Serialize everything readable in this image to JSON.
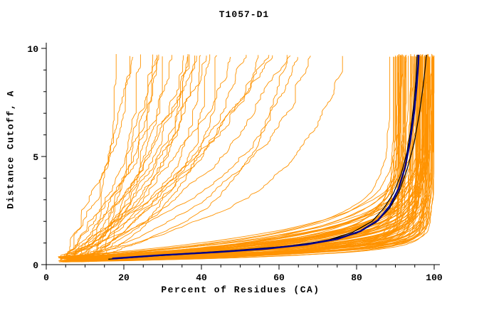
{
  "chart_data": {
    "type": "line",
    "title": "T1057-D1",
    "xlabel": "Percent of Residues (CA)",
    "ylabel": "Distance Cutoff, A",
    "xlim": [
      0,
      100
    ],
    "ylim": [
      0,
      10
    ],
    "x_ticks": [
      0,
      20,
      40,
      60,
      80,
      100
    ],
    "y_ticks": [
      0,
      5,
      10
    ],
    "x_minor_step": 5,
    "y_minor_step": 1,
    "grid": false,
    "legend": "none",
    "axis_color": "#000000",
    "description": "GDT-style plot: cumulative percent of CA residues under each distance cutoff for many predicted models",
    "series_groups": [
      {
        "name": "prediction-models",
        "color": "#ff9300",
        "line_width": 0.9,
        "render": "bundle",
        "seed": 1337,
        "dense": {
          "count": 92,
          "x_start_range": [
            3,
            9
          ],
          "x_end_range": [
            87,
            99.5
          ],
          "tau_range": [
            0.25,
            1.4
          ],
          "wiggle": 0.35
        },
        "stragglers": {
          "count": 30,
          "x_start_range": [
            3,
            13
          ],
          "x_end_range": [
            16,
            88
          ],
          "tau_range": [
            1.8,
            9.5
          ],
          "wiggle": 0.9
        }
      },
      {
        "name": "reference-curve-1",
        "color": "#000000",
        "line_width": 1.2,
        "render": "points",
        "points": [
          [
            16,
            0.25
          ],
          [
            28,
            0.4
          ],
          [
            42,
            0.55
          ],
          [
            55,
            0.72
          ],
          [
            65,
            0.9
          ],
          [
            73,
            1.15
          ],
          [
            79,
            1.5
          ],
          [
            84,
            2.0
          ],
          [
            87,
            2.6
          ],
          [
            89.5,
            3.3
          ],
          [
            91.5,
            4.2
          ],
          [
            93,
            5.2
          ],
          [
            94,
            6.3
          ],
          [
            94.8,
            7.5
          ],
          [
            95.3,
            8.6
          ],
          [
            95.6,
            9.7
          ]
        ]
      },
      {
        "name": "reference-curve-2",
        "color": "#000000",
        "line_width": 1.2,
        "render": "points",
        "points": [
          [
            18,
            0.3
          ],
          [
            33,
            0.48
          ],
          [
            48,
            0.65
          ],
          [
            62,
            0.85
          ],
          [
            72,
            1.1
          ],
          [
            80,
            1.45
          ],
          [
            85,
            1.95
          ],
          [
            88.5,
            2.6
          ],
          [
            91,
            3.4
          ],
          [
            93,
            4.4
          ],
          [
            94.8,
            5.6
          ],
          [
            96.2,
            7.0
          ],
          [
            97.2,
            8.3
          ],
          [
            97.8,
            9.3
          ],
          [
            98,
            9.7
          ]
        ]
      },
      {
        "name": "best-model-curve",
        "color": "#00008b",
        "line_width": 2.4,
        "render": "points",
        "points": [
          [
            17,
            0.28
          ],
          [
            30,
            0.44
          ],
          [
            44,
            0.58
          ],
          [
            57,
            0.74
          ],
          [
            67,
            0.93
          ],
          [
            75,
            1.18
          ],
          [
            81,
            1.55
          ],
          [
            85.5,
            2.05
          ],
          [
            88.5,
            2.7
          ],
          [
            90.8,
            3.5
          ],
          [
            92.5,
            4.5
          ],
          [
            93.8,
            5.7
          ],
          [
            94.8,
            7.0
          ],
          [
            95.5,
            8.3
          ],
          [
            95.9,
            9.3
          ],
          [
            96,
            9.7
          ]
        ]
      }
    ]
  }
}
